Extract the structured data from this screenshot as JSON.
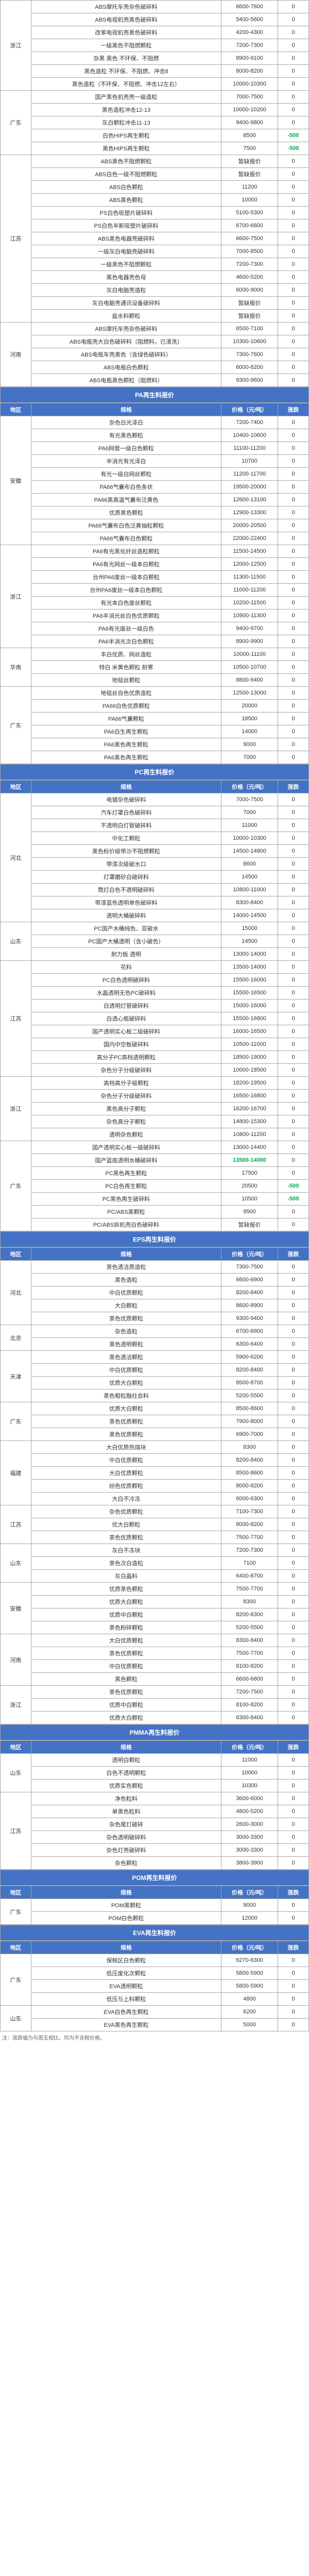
{
  "colors": {
    "header_bg": "#4472c4",
    "header_fg": "#ffffff",
    "border": "#a6a6a6",
    "neg": "#00a650",
    "pos": "#d00"
  },
  "columns": {
    "region": "地区",
    "spec": "规格",
    "price": "价格（元/吨）",
    "change": "涨跌"
  },
  "sections": [
    {
      "title": null,
      "rows": [
        {
          "region": "浙江",
          "spec": "ABS摩托车壳杂色破碎料",
          "price": "6600-7600",
          "change": "0"
        },
        {
          "region": "",
          "spec": "ABS电视机壳黑色破碎料",
          "price": "5400-5600",
          "change": "0"
        },
        {
          "region": "",
          "spec": "改苯电视机壳黑色破碎料",
          "price": "4200-4300",
          "change": "0"
        },
        {
          "region": "",
          "spec": "一级黑色不阻燃颗粒",
          "price": "7200-7300",
          "change": "0"
        },
        {
          "region": "",
          "spec": "杂黑 黑色 不环保、不阻燃",
          "price": "8900-9100",
          "change": "0"
        },
        {
          "region": "",
          "spec": "黑色造粒 不环保、不阻燃、冲击8",
          "price": "8000-8200",
          "change": "0"
        },
        {
          "region": "",
          "spec": "黑色造粒（不环保、不阻燃、冲击12左右）",
          "price": "10000-10300",
          "change": "0"
        },
        {
          "region": "广东",
          "spec": "国产黑色机壳壳一级造粒",
          "price": "7000-7500",
          "change": "0"
        },
        {
          "region": "",
          "spec": "黑色造粒冲击12-13",
          "price": "10000-10200",
          "change": "0"
        },
        {
          "region": "",
          "spec": "灰白颗粒冲击11-13",
          "price": "9400-9800",
          "change": "0"
        },
        {
          "region": "",
          "spec": "白色HIPS再生颗粒",
          "price": "8500",
          "change": "-500",
          "changeClass": "neg"
        },
        {
          "region": "",
          "spec": "黑色HIPS再生颗粒",
          "price": "7500",
          "change": "-500",
          "changeClass": "neg"
        },
        {
          "region": "江苏",
          "spec": "ABS黑色不阻燃颗粒",
          "price": "暂缺报价",
          "change": "0"
        },
        {
          "region": "",
          "spec": "ABS白色一级不阻燃颗粒",
          "price": "暂缺报价",
          "change": "0"
        },
        {
          "region": "",
          "spec": "ABS白色颗粒",
          "price": "11200",
          "change": "0"
        },
        {
          "region": "",
          "spec": "ABS黑色颗粒",
          "price": "10000",
          "change": "0"
        },
        {
          "region": "",
          "spec": "PS白色吸塑片破碎料",
          "price": "5100-5300",
          "change": "0"
        },
        {
          "region": "",
          "spec": "PS白色半新吸塑片破碎料",
          "price": "6700-6800",
          "change": "0"
        },
        {
          "region": "",
          "spec": "ABS黑色电器壳破碎料",
          "price": "6600-7500",
          "change": "0"
        },
        {
          "region": "",
          "spec": "一级灰白电脑壳破碎料",
          "price": "7000-8500",
          "change": "0"
        },
        {
          "region": "",
          "spec": "一级黑色不阻燃颗粒",
          "price": "7200-7300",
          "change": "0"
        },
        {
          "region": "",
          "spec": "黑色电器壳色母",
          "price": "4600-5200",
          "change": "0"
        },
        {
          "region": "",
          "spec": "灰白电脑壳造粒",
          "price": "6000-9000",
          "change": "0"
        },
        {
          "region": "",
          "spec": "灰白电脑壳通讯设备破碎料",
          "price": "暂缺报价",
          "change": "0"
        },
        {
          "region": "",
          "spec": "盐水料颗粒",
          "price": "暂缺报价",
          "change": "0"
        },
        {
          "region": "河南",
          "spec": "ABS摩托车壳杂色破碎料",
          "price": "6500-7100",
          "change": "0"
        },
        {
          "region": "",
          "spec": "ABS电瓶壳大白色破碎料（阻燃料，已清洗）",
          "price": "10300-10600",
          "change": "0"
        },
        {
          "region": "",
          "spec": "ABS电瓶车壳黑色（含绿色破碎料）",
          "price": "7300-7600",
          "change": "0"
        },
        {
          "region": "",
          "spec": "ABS电瓶白色颗粒",
          "price": "6000-6200",
          "change": "0"
        },
        {
          "region": "",
          "spec": "ABS电瓶黑色颗粒（阻燃料）",
          "price": "9300-9600",
          "change": "0"
        }
      ]
    },
    {
      "title": "PA再生料报价",
      "header": true,
      "rows": [
        {
          "region": "安徽",
          "spec": "杂色白光泽白",
          "price": "7200-7400",
          "change": "0"
        },
        {
          "region": "",
          "spec": "有光黑色颗粒",
          "price": "10400-10600",
          "change": "0"
        },
        {
          "region": "",
          "spec": "PA6网管一级白色颗粒",
          "price": "11100-11200",
          "change": "0"
        },
        {
          "region": "",
          "spec": "半消光有光泽白",
          "price": "10700",
          "change": "0"
        },
        {
          "region": "",
          "spec": "有光一级白网丝颗粒",
          "price": "11200-11700",
          "change": "0"
        },
        {
          "region": "",
          "spec": "PA66气囊布白色条状",
          "price": "19500-20000",
          "change": "0"
        },
        {
          "region": "",
          "spec": "PA66黑高温气囊布泛黄色",
          "price": "12600-13100",
          "change": "0"
        },
        {
          "region": "",
          "spec": "优质黑色颗粒",
          "price": "12900-13300",
          "change": "0"
        },
        {
          "region": "",
          "spec": "PA66气囊布白色泛黄抽粒颗粒",
          "price": "20000-20500",
          "change": "0"
        },
        {
          "region": "",
          "spec": "PA66气囊布白色颗粒",
          "price": "22000-22400",
          "change": "0"
        },
        {
          "region": "浙江",
          "spec": "PA6有光黑化纤丝造粒颗粒",
          "price": "11500-14500",
          "change": "0"
        },
        {
          "region": "",
          "spec": "PA6有光网丝一级本白颗粒",
          "price": "12000-12500",
          "change": "0"
        },
        {
          "region": "",
          "spec": "台州PA6废丝一级本白颗粒",
          "price": "11300-11500",
          "change": "0"
        },
        {
          "region": "",
          "spec": "台州PA6废丝一级本白色颗粒",
          "price": "11000-11200",
          "change": "0"
        },
        {
          "region": "",
          "spec": "有光本白色废丝颗粒",
          "price": "10200-11500",
          "change": "0"
        },
        {
          "region": "",
          "spec": "PA6半消光丝白色优质颗粒",
          "price": "10900-11300",
          "change": "0"
        },
        {
          "region": "",
          "spec": "PA6有光废丝一级白色",
          "price": "9400-9700",
          "change": "0"
        },
        {
          "region": "",
          "spec": "PA6半消光次白色颗粒",
          "price": "8900-9900",
          "change": "0"
        },
        {
          "region": "华南",
          "spec": "丰白优质、网丝造粒",
          "price": "10000-11100",
          "change": "0"
        },
        {
          "region": "",
          "spec": "特白 米黄色颗粒 耐寒",
          "price": "10500-10700",
          "change": "0"
        },
        {
          "region": "",
          "spec": "地毯丝颗粒",
          "price": "8800-9400",
          "change": "0"
        },
        {
          "region": "广东",
          "spec": "地毯丝自色优质造粒",
          "price": "12500-13000",
          "change": "0"
        },
        {
          "region": "",
          "spec": "PA66白色优质颗粒",
          "price": "20000",
          "change": "0"
        },
        {
          "region": "",
          "spec": "PA66气囊颗粒",
          "price": "18500",
          "change": "0"
        },
        {
          "region": "",
          "spec": "PA6白生再生颗粒",
          "price": "14000",
          "change": "0"
        },
        {
          "region": "",
          "spec": "PA6黑色再生颗粒",
          "price": "9000",
          "change": "0"
        },
        {
          "region": "",
          "spec": "PA6黑色再生颗粒",
          "price": "7000",
          "change": "0"
        }
      ]
    },
    {
      "title": "PC再生料报价",
      "header": true,
      "rows": [
        {
          "region": "河北",
          "spec": "电镀杂色破碎料",
          "price": "7000-7500",
          "change": "0"
        },
        {
          "region": "",
          "spec": "汽车灯罩白色破碎料",
          "price": "7000",
          "change": "0"
        },
        {
          "region": "",
          "spec": "不透明白灯管破碎料",
          "price": "11000",
          "change": "0"
        },
        {
          "region": "",
          "spec": "中化工颗粒",
          "price": "10000-10300",
          "change": "0"
        },
        {
          "region": "",
          "spec": "黑色标价级带沙不阻燃颗粒",
          "price": "14500-14800",
          "change": "0"
        },
        {
          "region": "",
          "spec": "带漆次级破水口",
          "price": "8600",
          "change": "0"
        },
        {
          "region": "",
          "spec": "灯罩磨砂白破碎料",
          "price": "14500",
          "change": "0"
        },
        {
          "region": "",
          "spec": "筒灯白色不透明破碎料",
          "price": "10800-11000",
          "change": "0"
        },
        {
          "region": "",
          "spec": "带漆蓝色透明单色破碎料",
          "price": "8300-8400",
          "change": "0"
        },
        {
          "region": "",
          "spec": "透明大桶破碎料",
          "price": "14000-14500",
          "change": "0"
        },
        {
          "region": "山东",
          "spec": "PC国产水桶纯色、亚破水",
          "price": "15000",
          "change": "0"
        },
        {
          "region": "",
          "spec": "PC国产大桶透明（含小破色）",
          "price": "14500",
          "change": "0"
        },
        {
          "region": "",
          "spec": "耐力板 透明",
          "price": "13000-14000",
          "change": "0"
        },
        {
          "region": "江苏",
          "spec": "花料",
          "price": "13500-14000",
          "change": "0"
        },
        {
          "region": "",
          "spec": "PC白色透明破碎料",
          "price": "15500-16000",
          "change": "0"
        },
        {
          "region": "",
          "spec": "水晶透明无色PC破碎料",
          "price": "15500-16500",
          "change": "0"
        },
        {
          "region": "",
          "spec": "白透明灯管破碎料",
          "price": "15000-16000",
          "change": "0"
        },
        {
          "region": "",
          "spec": "白透心瓶破碎料",
          "price": "15500-16800",
          "change": "0"
        },
        {
          "region": "",
          "spec": "国产透明实心板二级破碎料",
          "price": "16000-16500",
          "change": "0"
        },
        {
          "region": "",
          "spec": "国内中空板破碎料",
          "price": "10500-11000",
          "change": "0"
        },
        {
          "region": "",
          "spec": "高分子PC高档透明颗粒",
          "price": "18500-19000",
          "change": "0"
        },
        {
          "region": "",
          "spec": "杂色分子分级破碎料",
          "price": "10000-18500",
          "change": "0"
        },
        {
          "region": "浙江",
          "spec": "高档高分子级颗粒",
          "price": "18200-19500",
          "change": "0"
        },
        {
          "region": "",
          "spec": "杂色分子分级破碎料",
          "price": "16500-16800",
          "change": "0"
        },
        {
          "region": "",
          "spec": "黑色高分子颗粒",
          "price": "16200-16700",
          "change": "0"
        },
        {
          "region": "",
          "spec": "杂色高分子颗粒",
          "price": "14800-15300",
          "change": "0"
        },
        {
          "region": "",
          "spec": "透明杂色颗粒",
          "price": "10800-11200",
          "change": "0"
        },
        {
          "region": "广东",
          "spec": "国产透明实心板一级破碎料",
          "price": "13000-14400",
          "change": "0"
        },
        {
          "region": "",
          "spec": "国产蓝底透明水桶破碎料",
          "price": "13500-14000",
          "change": "0",
          "priceClass": "neg"
        },
        {
          "region": "",
          "spec": "PC黑色再生颗粒",
          "price": "17500",
          "change": "0"
        },
        {
          "region": "",
          "spec": "PC白色再生颗粒",
          "price": "20500",
          "change": "-500",
          "changeClass": "neg"
        },
        {
          "region": "",
          "spec": "PC黑色再生破碎料",
          "price": "10500",
          "change": "-500",
          "changeClass": "neg"
        },
        {
          "region": "",
          "spec": "PC/ABS黑颗粒",
          "price": "9500",
          "change": "0"
        },
        {
          "region": "",
          "spec": "PC/ABS拆机壳白色破碎料",
          "price": "暂缺报价",
          "change": "0"
        }
      ]
    },
    {
      "title": "EPS再生料报价",
      "header": true,
      "rows": [
        {
          "region": "河北",
          "spec": "茶色透洁质造粒",
          "price": "7300-7500",
          "change": "0"
        },
        {
          "region": "",
          "spec": "黑色造粒",
          "price": "6600-6900",
          "change": "0"
        },
        {
          "region": "",
          "spec": "中白优质颗粒",
          "price": "8200-8400",
          "change": "0"
        },
        {
          "region": "",
          "spec": "大白颗粒",
          "price": "8600-8900",
          "change": "0"
        },
        {
          "region": "",
          "spec": "茶色优质颗粒",
          "price": "9300-9400",
          "change": "0"
        },
        {
          "region": "北京",
          "spec": "杂色造粒",
          "price": "6700-6900",
          "change": "0"
        },
        {
          "region": "",
          "spec": "黑色透明颗粒",
          "price": "6300-6400",
          "change": "0"
        },
        {
          "region": "天津",
          "spec": "黑色透洁颗粒",
          "price": "5900-6200",
          "change": "0"
        },
        {
          "region": "",
          "spec": "中白优质颗粒",
          "price": "8200-8400",
          "change": "0"
        },
        {
          "region": "",
          "spec": "优质大白颗粒",
          "price": "8500-8700",
          "change": "0"
        },
        {
          "region": "",
          "spec": "茶色粗粒融社会料",
          "price": "5200-5500",
          "change": "0"
        },
        {
          "region": "广东",
          "spec": "优质大白颗粒",
          "price": "8500-8600",
          "change": "0"
        },
        {
          "region": "",
          "spec": "茶色优质颗粒",
          "price": "7900-8000",
          "change": "0"
        },
        {
          "region": "",
          "spec": "黑色优质颗粒",
          "price": "6900-7000",
          "change": "0"
        },
        {
          "region": "福建",
          "spec": "大白优质热熔块",
          "price": "8300",
          "change": "0"
        },
        {
          "region": "",
          "spec": "中白优质颗粒",
          "price": "8200-8400",
          "change": "0"
        },
        {
          "region": "",
          "spec": "大白优质颗粒",
          "price": "8500-8600",
          "change": "0"
        },
        {
          "region": "",
          "spec": "纷色优质颗粒",
          "price": "8000-8200",
          "change": "0"
        },
        {
          "region": "",
          "spec": "大白不冷冻",
          "price": "6000-6300",
          "change": "0"
        },
        {
          "region": "江苏",
          "spec": "杂色优质颗粒",
          "price": "7100-7300",
          "change": "0"
        },
        {
          "region": "",
          "spec": "优大白颗粒",
          "price": "8000-8200",
          "change": "0"
        },
        {
          "region": "",
          "spec": "茶色优质颗粒",
          "price": "7500-7700",
          "change": "0"
        },
        {
          "region": "山东",
          "spec": "灰白不冻块",
          "price": "7200-7300",
          "change": "0"
        },
        {
          "region": "",
          "spec": "茶色次白造粒",
          "price": "7100",
          "change": "0"
        },
        {
          "region": "",
          "spec": "灰白晶料",
          "price": "6400-8700",
          "change": "0"
        },
        {
          "region": "安徽",
          "spec": "优质茶色颗粒",
          "price": "7500-7700",
          "change": "0"
        },
        {
          "region": "",
          "spec": "优质大白颗粒",
          "price": "8300",
          "change": "0"
        },
        {
          "region": "",
          "spec": "优质中白颗粒",
          "price": "8200-8300",
          "change": "0"
        },
        {
          "region": "",
          "spec": "茶色粉碎颗粒",
          "price": "5200-5500",
          "change": "0"
        },
        {
          "region": "河南",
          "spec": "大白优质颗粒",
          "price": "8300-8400",
          "change": "0"
        },
        {
          "region": "",
          "spec": "茶色优质颗粒",
          "price": "7500-7700",
          "change": "0"
        },
        {
          "region": "",
          "spec": "中白优质颗粒",
          "price": "8100-8200",
          "change": "0"
        },
        {
          "region": "",
          "spec": "黑色颗粒",
          "price": "6600-6800",
          "change": "0"
        },
        {
          "region": "浙江",
          "spec": "茶色优质颗粒",
          "price": "7200-7500",
          "change": "0"
        },
        {
          "region": "",
          "spec": "优质中白颗粒",
          "price": "8100-8200",
          "change": "0"
        },
        {
          "region": "",
          "spec": "优质大白颗粒",
          "price": "8300-8400",
          "change": "0"
        }
      ]
    },
    {
      "title": "PMMA再生料报价",
      "header": true,
      "rows": [
        {
          "region": "山东",
          "spec": "透明白颗粒",
          "price": "11000",
          "change": "0"
        },
        {
          "region": "",
          "spec": "白色不透明颗粒",
          "price": "10000",
          "change": "0"
        },
        {
          "region": "",
          "spec": "优质实色颗粒",
          "price": "10300",
          "change": "0"
        },
        {
          "region": "江苏",
          "spec": "净色粒料",
          "price": "3600-6000",
          "change": "0"
        },
        {
          "region": "",
          "spec": "单黑色粒料",
          "price": "4800-5200",
          "change": "0"
        },
        {
          "region": "",
          "spec": "杂色尾灯破碎",
          "price": "2600-3000",
          "change": "0"
        },
        {
          "region": "",
          "spec": "杂色透明破碎料",
          "price": "3000-3300",
          "change": "0"
        },
        {
          "region": "",
          "spec": "杂色灯壳破碎料",
          "price": "3000-3300",
          "change": "0"
        },
        {
          "region": "",
          "spec": "杂色颗粒",
          "price": "3800-3900",
          "change": "0"
        }
      ]
    },
    {
      "title": "POM再生料报价",
      "header": true,
      "rows": [
        {
          "region": "广东",
          "spec": "POM黑颗粒",
          "price": "9000",
          "change": "0"
        },
        {
          "region": "",
          "spec": "POM白色颗粒",
          "price": "12000",
          "change": "0"
        }
      ]
    },
    {
      "title": "EVA再生料报价",
      "header": true,
      "rows": [
        {
          "region": "广东",
          "spec": "保税区白色颗粒",
          "price": "6270-6300",
          "change": "0"
        },
        {
          "region": "",
          "spec": "低压废化次颗粒",
          "price": "5800-5900",
          "change": "0"
        },
        {
          "region": "",
          "spec": "EVA透明颗粒",
          "price": "5800-5900",
          "change": "0"
        },
        {
          "region": "",
          "spec": "低压与上料颗粒",
          "price": "4800",
          "change": "0"
        },
        {
          "region": "山东",
          "spec": "EVA白色再生颗粒",
          "price": "6200",
          "change": "0"
        },
        {
          "region": "",
          "spec": "EVA黑色再生颗粒",
          "price": "5000",
          "change": "0"
        }
      ]
    }
  ],
  "footnote": "注：涨跌幅为与周五相比。均为不含税价格。"
}
